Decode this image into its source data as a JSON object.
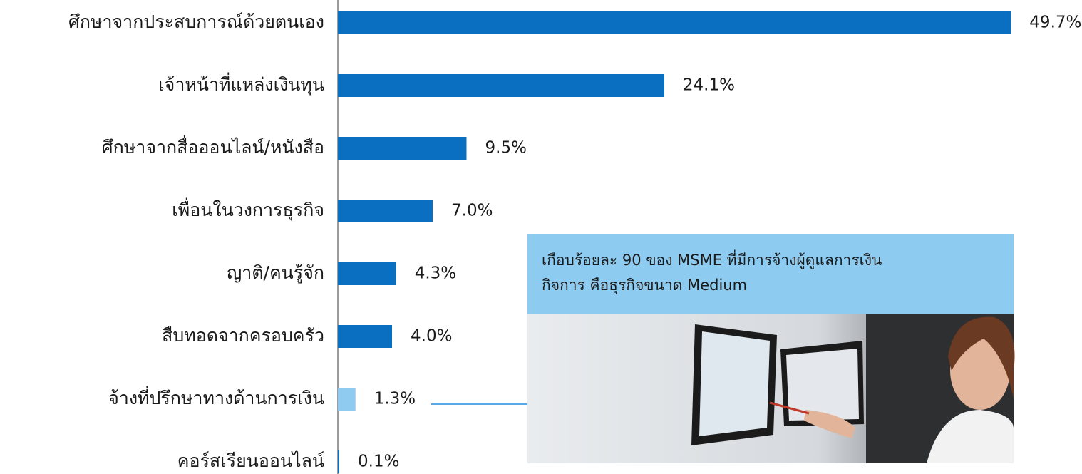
{
  "chart_data": {
    "type": "hbar",
    "categories": [
      "ศึกษาจากประสบการณ์ด้วยตนเอง",
      "เจ้าหน้าที่แหล่งเงินทุน",
      "ศึกษาจากสื่อออนไลน์/หนังสือ",
      "เพื่อนในวงการธุรกิจ",
      "ญาติ/คนรู้จัก",
      "สืบทอดจากครอบครัว",
      "จ้างที่ปรึกษาทางด้านการเงิน",
      "คอร์สเรียนออนไลน์"
    ],
    "values": [
      49.7,
      24.1,
      9.5,
      7.0,
      4.3,
      4.0,
      1.3,
      0.1
    ],
    "value_labels": [
      "49.7%",
      "24.1%",
      "9.5%",
      "7.0%",
      "4.3%",
      "4.0%",
      "1.3%",
      "0.1%"
    ],
    "colors": [
      "#0b6fc1",
      "#0b6fc1",
      "#0b6fc1",
      "#0b6fc1",
      "#0b6fc1",
      "#0b6fc1",
      "#8fcaf0",
      "#0b6fc1"
    ],
    "xlim": [
      0,
      50
    ],
    "annotation": [
      "เกือบร้อยละ 90 ของ MSME ที่มีการจ้างผู้ดูแลการเงิน",
      "กิจการ คือธุรกิจขนาด Medium"
    ]
  }
}
